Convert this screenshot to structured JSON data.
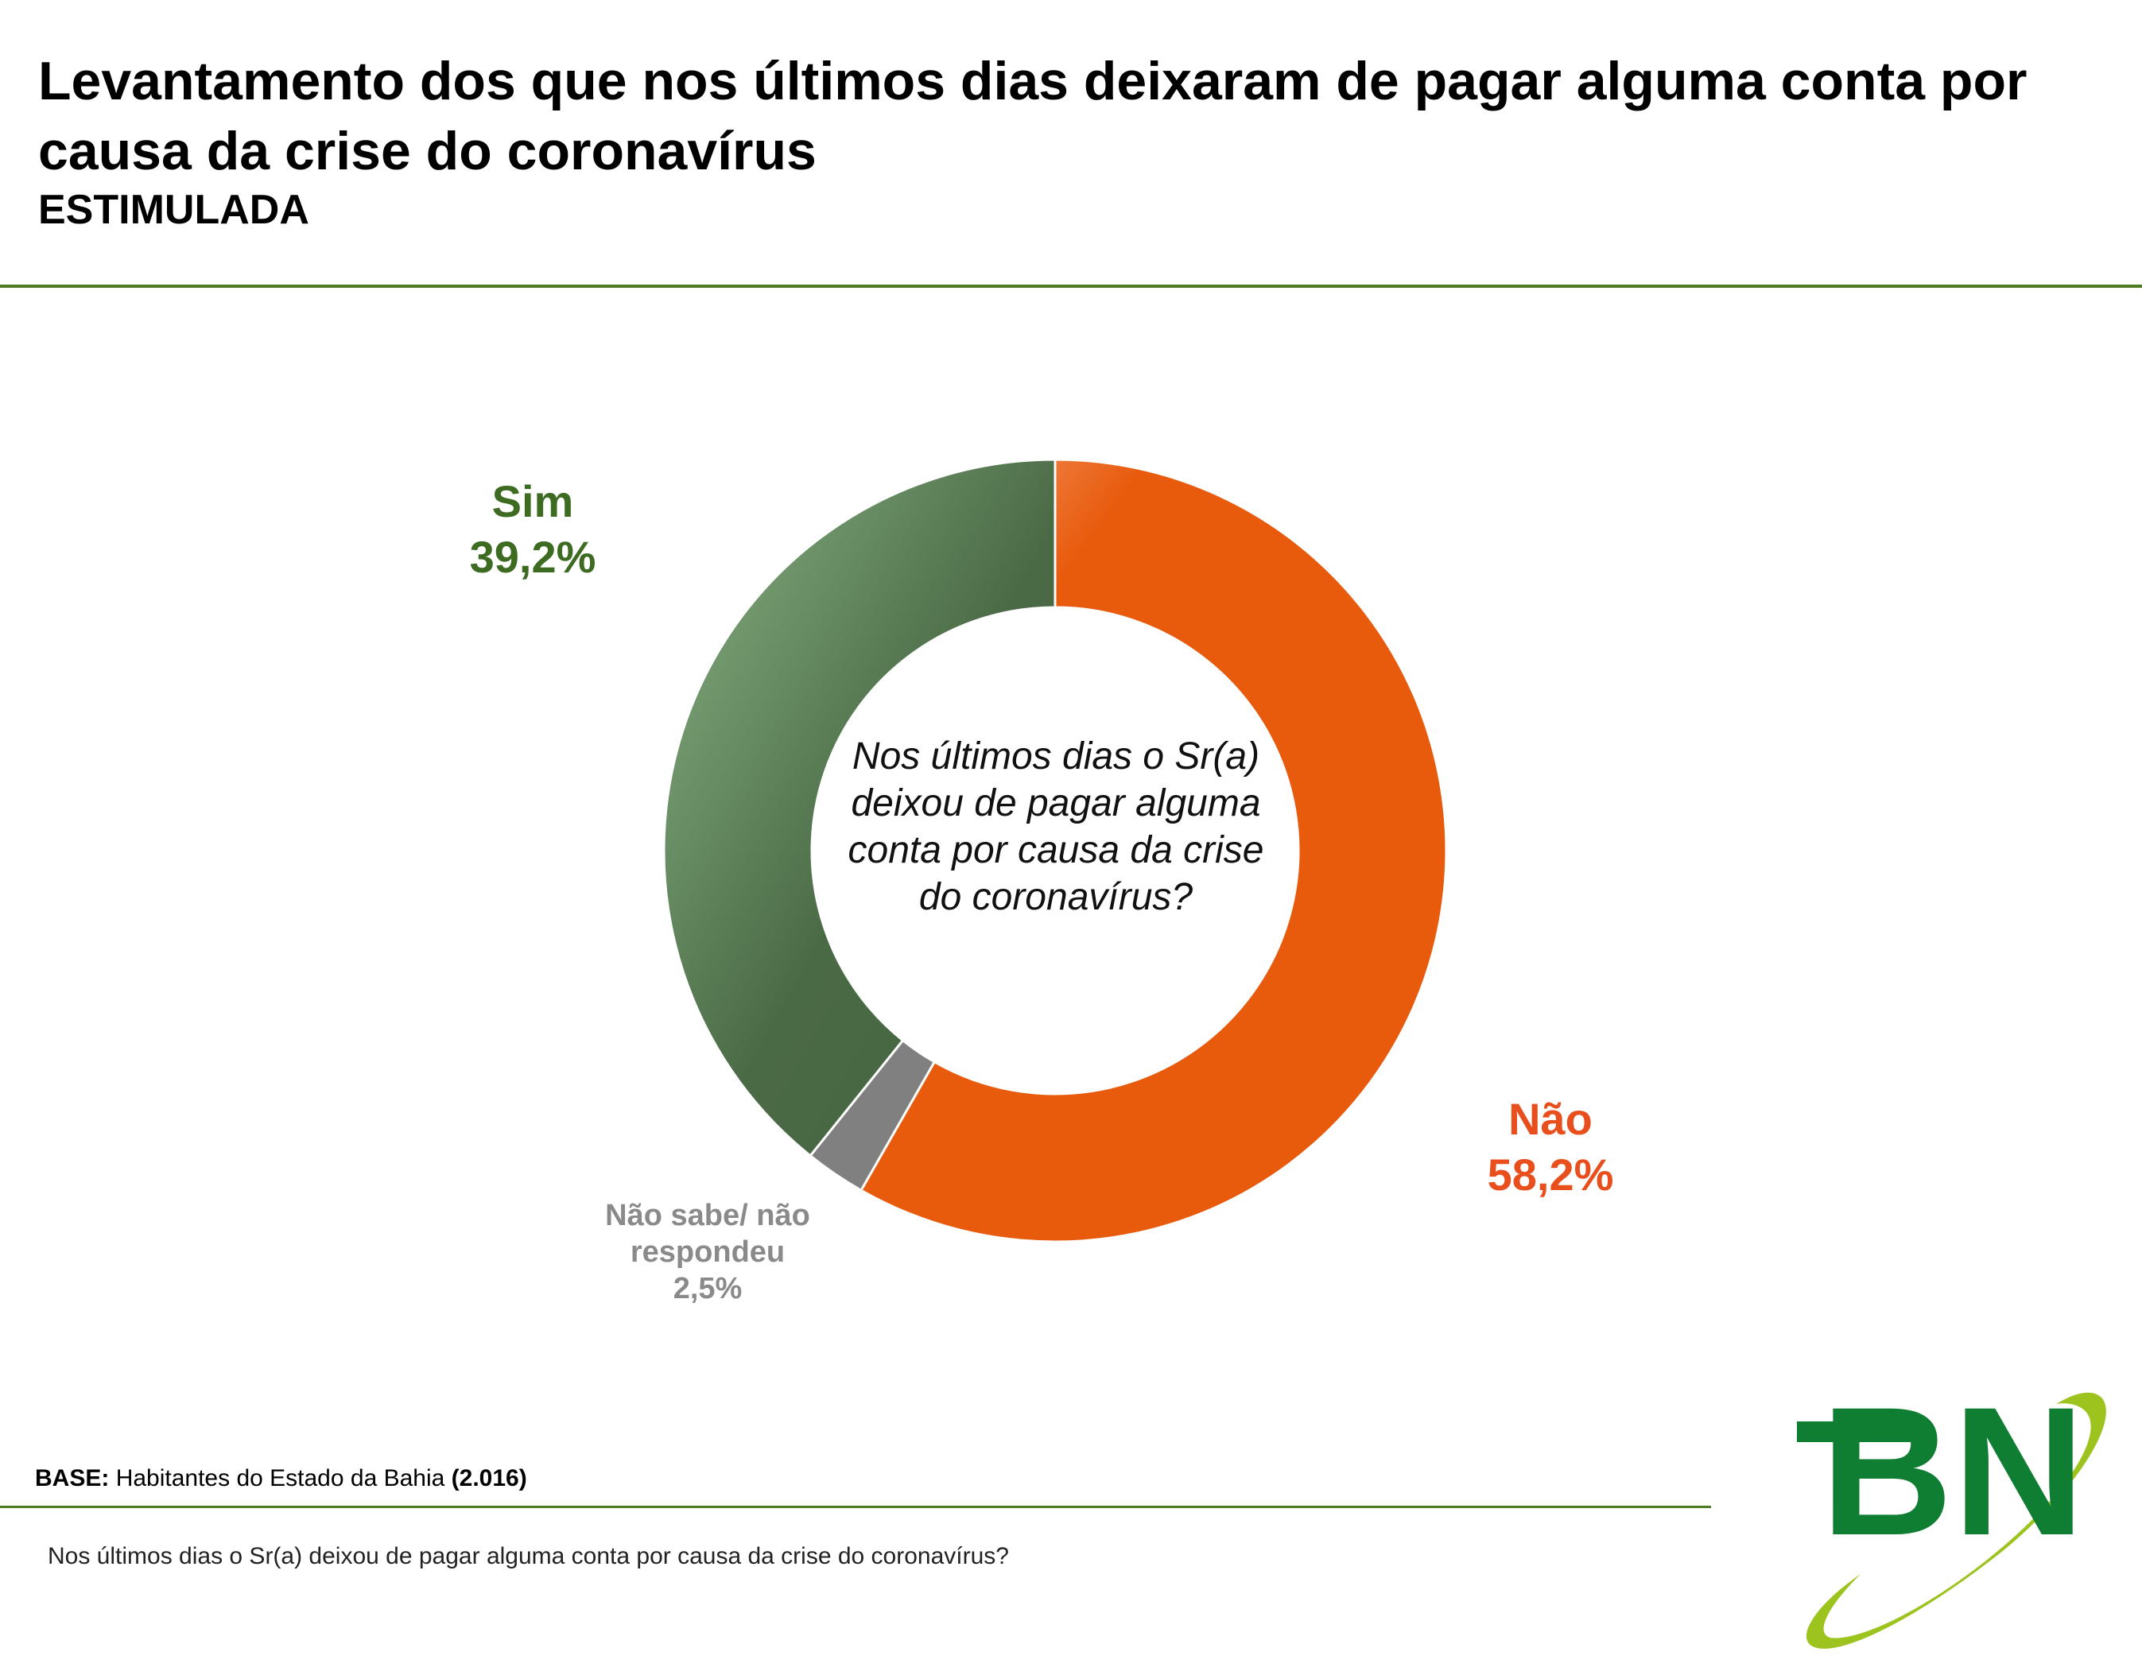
{
  "title": "Levantamento dos que nos últimos dias deixaram de pagar alguma conta por causa da crise do coronavírus",
  "subtitle": "ESTIMULADA",
  "colors": {
    "sim": "#4a6a45",
    "sim_light": "#7fa47b",
    "nao": "#e85a0c",
    "nao_light": "#f5a57a",
    "nao_sabe": "#808080",
    "sim_label": "#3d6b22",
    "nao_label": "#e84f1c",
    "nao_sabe_label": "#8a8a8a",
    "rule": "#4b7a1f",
    "logo_green": "#0f7d32",
    "logo_lime": "#9dc31e"
  },
  "chart_data": {
    "type": "pie",
    "variant": "donut",
    "title": "Levantamento dos que nos últimos dias deixaram de pagar alguma conta por causa da crise do coronavírus",
    "center_text": "Nos últimos dias o Sr(a) deixou de pagar alguma conta por causa da crise do coronavírus?",
    "series": [
      {
        "name": "Não",
        "value": 58.2,
        "label": "58,2%"
      },
      {
        "name": "Não sabe/ não respondeu",
        "value": 2.5,
        "label": "2,5%"
      },
      {
        "name": "Sim",
        "value": 39.2,
        "label": "39,2%"
      }
    ]
  },
  "labels": {
    "sim_name": "Sim",
    "sim_value": "39,2%",
    "nao_name": "Não",
    "nao_value": "58,2%",
    "ns_line1": "Não sabe/ não",
    "ns_line2": "respondeu",
    "ns_value": "2,5%"
  },
  "footer": {
    "base_label": "BASE:",
    "base_text": "Habitantes do Estado da Bahia",
    "base_count": "(2.016)",
    "question": "Nos últimos dias o Sr(a) deixou de pagar alguma conta por causa da crise do coronavírus?"
  },
  "logo": {
    "text": "BN",
    "icon": "bn-logo-icon"
  }
}
